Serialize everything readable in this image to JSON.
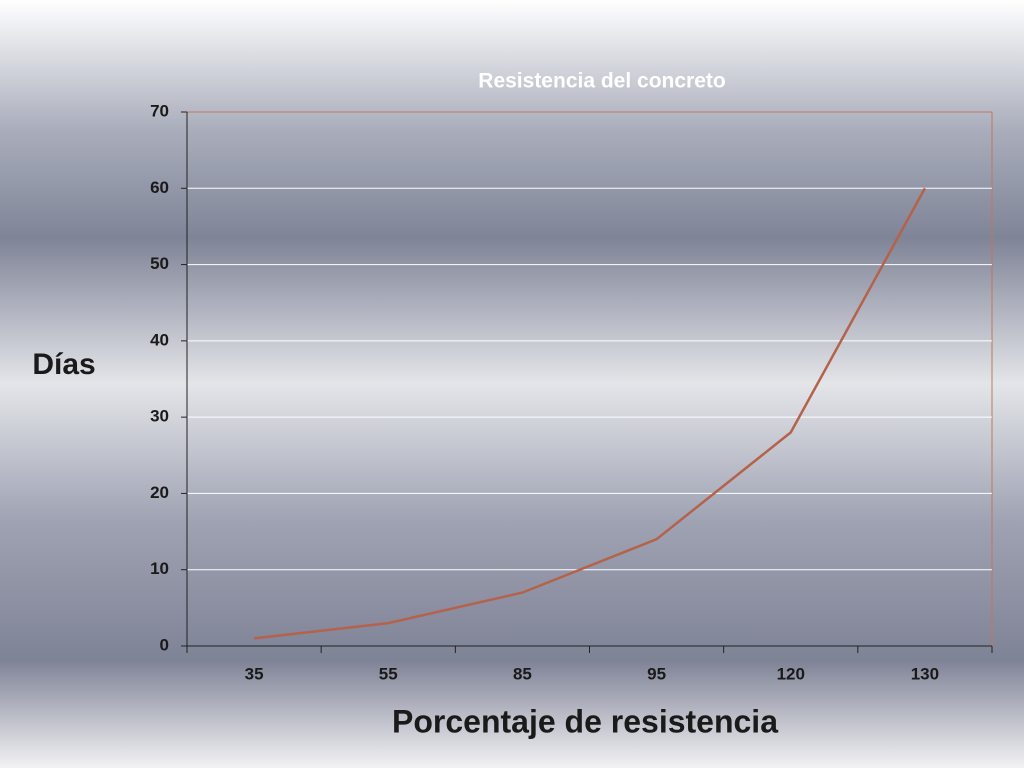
{
  "chart_data": {
    "type": "line",
    "title": "Resistencia del concreto",
    "x_label": "Porcentaje de resistencia",
    "y_label": "Días",
    "categories": [
      "35",
      "55",
      "85",
      "95",
      "120",
      "130"
    ],
    "values": [
      1,
      3,
      7,
      14,
      28,
      60
    ],
    "color": "#b5624b",
    "ylim": [
      0,
      70
    ],
    "yticks": [
      0,
      10,
      20,
      30,
      40,
      50,
      60,
      70
    ],
    "grid": true
  }
}
